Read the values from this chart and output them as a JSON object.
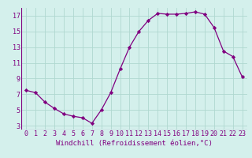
{
  "x": [
    0,
    1,
    2,
    3,
    4,
    5,
    6,
    7,
    8,
    9,
    10,
    11,
    12,
    13,
    14,
    15,
    16,
    17,
    18,
    19,
    20,
    21,
    22,
    23
  ],
  "y": [
    7.5,
    7.2,
    6.0,
    5.2,
    4.5,
    4.2,
    4.0,
    3.3,
    5.0,
    7.2,
    10.2,
    13.0,
    15.0,
    16.4,
    17.3,
    17.2,
    17.2,
    17.3,
    17.5,
    17.2,
    15.5,
    12.5,
    11.8,
    9.2
  ],
  "line_color": "#800080",
  "marker": "D",
  "marker_size": 2.2,
  "bg_color": "#d4f0ec",
  "grid_color": "#b0d8d0",
  "xlabel": "Windchill (Refroidissement éolien,°C)",
  "xlabel_fontsize": 6.5,
  "xlabel_color": "#800080",
  "tick_color": "#800080",
  "tick_fontsize": 6.0,
  "ylim": [
    2.5,
    18.0
  ],
  "yticks": [
    3,
    5,
    7,
    9,
    11,
    13,
    15,
    17
  ],
  "xlim": [
    -0.5,
    23.5
  ],
  "xticks": [
    0,
    1,
    2,
    3,
    4,
    5,
    6,
    7,
    8,
    9,
    10,
    11,
    12,
    13,
    14,
    15,
    16,
    17,
    18,
    19,
    20,
    21,
    22,
    23
  ],
  "linewidth": 0.9
}
